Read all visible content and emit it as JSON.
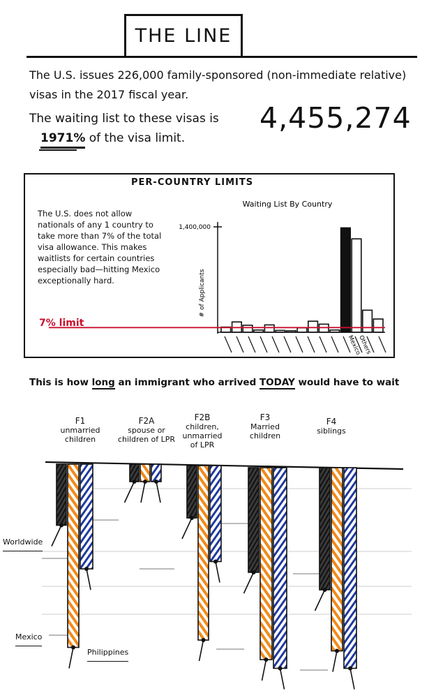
{
  "title": "THE LINE",
  "intro": {
    "text": "The U.S. issues 226,000 family-sponsored (non-immediate relative) visas in the 2017 fiscal year.",
    "waiting_prefix": "The waiting list to these visas is",
    "waiting_number": "4,455,274",
    "percent": "1971%",
    "percent_suffix": "of the visa limit."
  },
  "per_country": {
    "heading": "PER-COUNTRY LIMITS",
    "explanation": "The U.S. does not allow nationals of any 1 country to take more than 7% of the total visa allowance. This makes waitlists for certain countries especially bad—hitting Mexico exceptionally hard.",
    "limit_label": "7% limit",
    "chart_data": {
      "type": "bar",
      "title": "Waiting List By Country",
      "xlabel": "",
      "ylabel": "# of Applicants",
      "y_tick_label": "1,400,000",
      "ylim": [
        0,
        1500000
      ],
      "limit_line": 15820,
      "limit_label": "7% limit",
      "categories": [
        "",
        "",
        "",
        "",
        "",
        "",
        "",
        "",
        "",
        "",
        "",
        "Mexico",
        "Others",
        "",
        ""
      ],
      "values": [
        70000,
        140000,
        95000,
        30000,
        100000,
        25000,
        20000,
        60000,
        150000,
        110000,
        30000,
        1420000,
        1270000,
        300000,
        180000
      ],
      "highlight": [
        "Mexico"
      ],
      "colors": {
        "bars": "#111111",
        "limit": "#c8102e"
      }
    }
  },
  "wait_section": {
    "line_prefix": "This is",
    "how": "how",
    "long": "long",
    "line_mid": "an immigrant who arrived",
    "today": "TODAY",
    "line_end": "would have to wait",
    "categories": [
      {
        "code": "F1",
        "desc": "unmarried children"
      },
      {
        "code": "F2A",
        "desc": "spouse or children of LPR"
      },
      {
        "code": "F2B",
        "desc": "children, unmarried of LPR"
      },
      {
        "code": "F3",
        "desc": "Married children"
      },
      {
        "code": "F4",
        "desc": "siblings"
      }
    ],
    "legend": {
      "worldwide": "Worldwide",
      "mexico": "Mexico",
      "philippines": "Philippines"
    },
    "chart_data": {
      "type": "bar",
      "categories": [
        "F1",
        "F2A",
        "F2B",
        "F3",
        "F4"
      ],
      "series": [
        {
          "name": "Worldwide",
          "values": [
            7,
            2,
            6,
            12,
            14
          ]
        },
        {
          "name": "Mexico",
          "values": [
            21,
            2,
            20,
            22,
            21
          ]
        },
        {
          "name": "Philippines",
          "values": [
            12,
            2,
            11,
            23,
            23
          ]
        }
      ],
      "colors": {
        "Worldwide": "#1a1a1a",
        "Mexico": "#f28a1a",
        "Philippines": "#1f3a9e"
      }
    }
  }
}
